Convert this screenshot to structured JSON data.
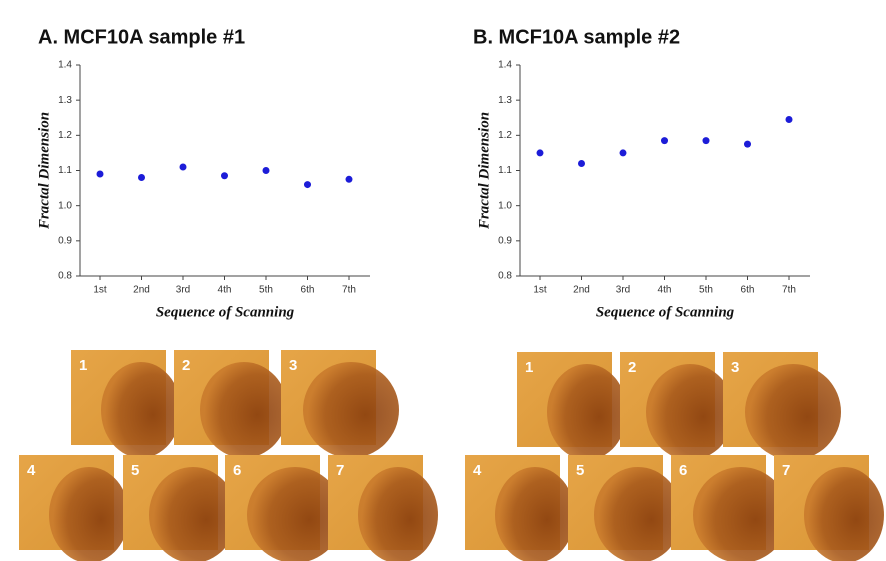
{
  "chart_data": [
    {
      "type": "scatter",
      "title": "A. MCF10A sample #1",
      "y_label": "Fractal Dimension",
      "x_label": "Sequence of Scanning",
      "categories": [
        "1st",
        "2nd",
        "3rd",
        "4th",
        "5th",
        "6th",
        "7th"
      ],
      "values": [
        1.09,
        1.08,
        1.11,
        1.085,
        1.1,
        1.06,
        1.075
      ],
      "color": "#1c1cd8",
      "ylim": [
        0.8,
        1.4
      ],
      "yticks": [
        0.8,
        0.9,
        {
          "value": 1,
          "label": "1.0"
        },
        1.1,
        1.2,
        1.3,
        1.4
      ]
    },
    {
      "type": "scatter",
      "title": "B. MCF10A sample #2",
      "y_label": "Fractal Dimension",
      "x_label": "Sequence of Scanning",
      "categories": [
        "1st",
        "2nd",
        "3rd",
        "4th",
        "5th",
        "6th",
        "7th"
      ],
      "values": [
        1.15,
        1.12,
        1.15,
        1.185,
        1.185,
        1.175,
        1.245
      ],
      "color": "#1c1cd8",
      "ylim": [
        0.8,
        1.4
      ],
      "yticks": [
        0.8,
        0.9,
        {
          "value": 1,
          "label": "1.0"
        },
        1.1,
        1.2,
        1.3,
        1.4
      ]
    }
  ],
  "micrographs": [
    {
      "labels": [
        "1",
        "2",
        "3",
        "4",
        "5",
        "6",
        "7"
      ]
    },
    {
      "labels": [
        "1",
        "2",
        "3",
        "4",
        "5",
        "6",
        "7"
      ]
    }
  ]
}
